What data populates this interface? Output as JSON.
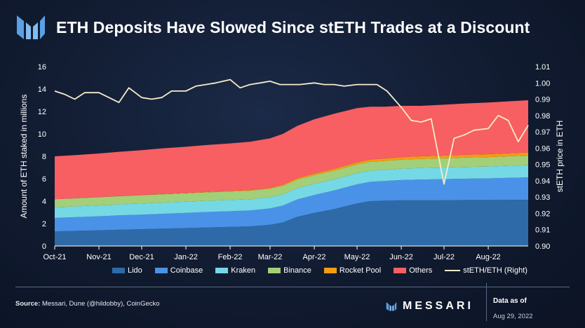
{
  "header": {
    "title": "ETH Deposits Have Slowed Since stETH Trades at a Discount"
  },
  "footer": {
    "source_label": "Source:",
    "source_text": "Messari, Dune (@hildobby), CoinGecko",
    "brand": "MESSARI",
    "asof_label": "Data as of",
    "asof_date": "Aug 29, 2022"
  },
  "colors": {
    "lido": "#2e6aa8",
    "coinbase": "#4a92e8",
    "kraken": "#74d9e4",
    "binance": "#a3cf78",
    "rocketpool": "#f39c12",
    "others": "#f75f62",
    "steth": "#f5ecc8"
  },
  "chart_data": {
    "type": "area",
    "x": [
      "2021-10-01",
      "2021-10-15",
      "2021-11-01",
      "2021-11-15",
      "2021-12-01",
      "2021-12-15",
      "2022-01-01",
      "2022-01-15",
      "2022-02-01",
      "2022-02-15",
      "2022-03-01",
      "2022-03-10",
      "2022-03-20",
      "2022-04-01",
      "2022-04-15",
      "2022-05-01",
      "2022-05-10",
      "2022-05-20",
      "2022-06-01",
      "2022-06-15",
      "2022-07-01",
      "2022-07-15",
      "2022-08-01",
      "2022-08-15",
      "2022-08-29"
    ],
    "series": [
      {
        "name": "Lido",
        "values": [
          1.3,
          1.35,
          1.4,
          1.45,
          1.5,
          1.55,
          1.6,
          1.65,
          1.7,
          1.75,
          1.9,
          2.1,
          2.6,
          2.95,
          3.3,
          3.8,
          4.0,
          4.05,
          4.08,
          4.08,
          4.08,
          4.1,
          4.1,
          4.12,
          4.12
        ]
      },
      {
        "name": "Coinbase",
        "values": [
          1.2,
          1.22,
          1.25,
          1.28,
          1.3,
          1.32,
          1.35,
          1.38,
          1.4,
          1.42,
          1.45,
          1.5,
          1.55,
          1.6,
          1.65,
          1.7,
          1.72,
          1.75,
          1.8,
          1.85,
          1.88,
          1.9,
          1.93,
          1.96,
          2.0
        ]
      },
      {
        "name": "Kraken",
        "values": [
          0.95,
          0.96,
          0.97,
          0.98,
          0.99,
          1.0,
          1.0,
          1.0,
          1.0,
          1.0,
          1.0,
          1.0,
          1.0,
          1.0,
          1.0,
          1.0,
          1.0,
          1.0,
          1.02,
          1.03,
          1.04,
          1.05,
          1.06,
          1.07,
          1.08
        ]
      },
      {
        "name": "Binance",
        "values": [
          0.72,
          0.72,
          0.73,
          0.73,
          0.74,
          0.74,
          0.75,
          0.75,
          0.76,
          0.76,
          0.76,
          0.77,
          0.77,
          0.77,
          0.78,
          0.78,
          0.79,
          0.79,
          0.8,
          0.81,
          0.82,
          0.83,
          0.84,
          0.85,
          0.86
        ]
      },
      {
        "name": "Rocket Pool",
        "values": [
          0.0,
          0.0,
          0.01,
          0.01,
          0.02,
          0.02,
          0.03,
          0.04,
          0.05,
          0.06,
          0.08,
          0.1,
          0.12,
          0.14,
          0.16,
          0.18,
          0.2,
          0.21,
          0.22,
          0.23,
          0.24,
          0.25,
          0.26,
          0.27,
          0.28
        ]
      },
      {
        "name": "Others",
        "values": [
          3.83,
          3.85,
          3.89,
          3.95,
          4.0,
          4.07,
          4.12,
          4.18,
          4.24,
          4.31,
          4.41,
          4.53,
          4.66,
          4.84,
          4.91,
          4.84,
          4.71,
          4.62,
          4.58,
          4.5,
          4.54,
          4.57,
          4.61,
          4.63,
          4.66
        ]
      }
    ],
    "steth": {
      "name": "stETH/ETH (Right)",
      "x": [
        "2021-10-01",
        "2021-10-08",
        "2021-10-15",
        "2021-10-22",
        "2021-11-01",
        "2021-11-08",
        "2021-11-15",
        "2021-11-22",
        "2021-12-01",
        "2021-12-08",
        "2021-12-15",
        "2021-12-22",
        "2022-01-01",
        "2022-01-08",
        "2022-01-15",
        "2022-01-22",
        "2022-02-01",
        "2022-02-08",
        "2022-02-15",
        "2022-02-22",
        "2022-03-01",
        "2022-03-08",
        "2022-03-15",
        "2022-03-22",
        "2022-04-01",
        "2022-04-08",
        "2022-04-15",
        "2022-04-22",
        "2022-05-01",
        "2022-05-08",
        "2022-05-15",
        "2022-05-22",
        "2022-06-01",
        "2022-06-08",
        "2022-06-15",
        "2022-06-22",
        "2022-07-01",
        "2022-07-08",
        "2022-07-15",
        "2022-07-22",
        "2022-08-01",
        "2022-08-08",
        "2022-08-15",
        "2022-08-22",
        "2022-08-29"
      ],
      "values": [
        0.995,
        0.993,
        0.99,
        0.994,
        0.994,
        0.991,
        0.988,
        0.997,
        0.991,
        0.99,
        0.991,
        0.995,
        0.995,
        0.998,
        0.999,
        1.0,
        1.002,
        0.997,
        0.999,
        1.0,
        1.001,
        0.999,
        0.999,
        0.999,
        1.0,
        0.999,
        0.999,
        0.998,
        0.999,
        0.999,
        0.999,
        0.995,
        0.985,
        0.977,
        0.976,
        0.978,
        0.938,
        0.966,
        0.968,
        0.971,
        0.972,
        0.98,
        0.977,
        0.964,
        0.974
      ]
    },
    "xlabel": "",
    "ylabel": "Amount of ETH staked in millions",
    "y2label": "stETH price in ETH",
    "ylim": [
      0,
      16
    ],
    "y2lim": [
      0.9,
      1.01
    ],
    "yticks": [
      "0",
      "2",
      "4",
      "6",
      "8",
      "10",
      "12",
      "14",
      "16"
    ],
    "y2ticks": [
      "0.90",
      "0.91",
      "0.92",
      "0.93",
      "0.94",
      "0.95",
      "0.96",
      "0.97",
      "0.98",
      "0.99",
      "1.00",
      "1.01"
    ],
    "xticks": [
      "Oct-21",
      "Nov-21",
      "Dec-21",
      "Jan-22",
      "Feb-22",
      "Mar-22",
      "Apr-22",
      "May-22",
      "Jun-22",
      "Jul-22",
      "Aug-22"
    ],
    "legend_position": "bottom",
    "grid": false
  }
}
